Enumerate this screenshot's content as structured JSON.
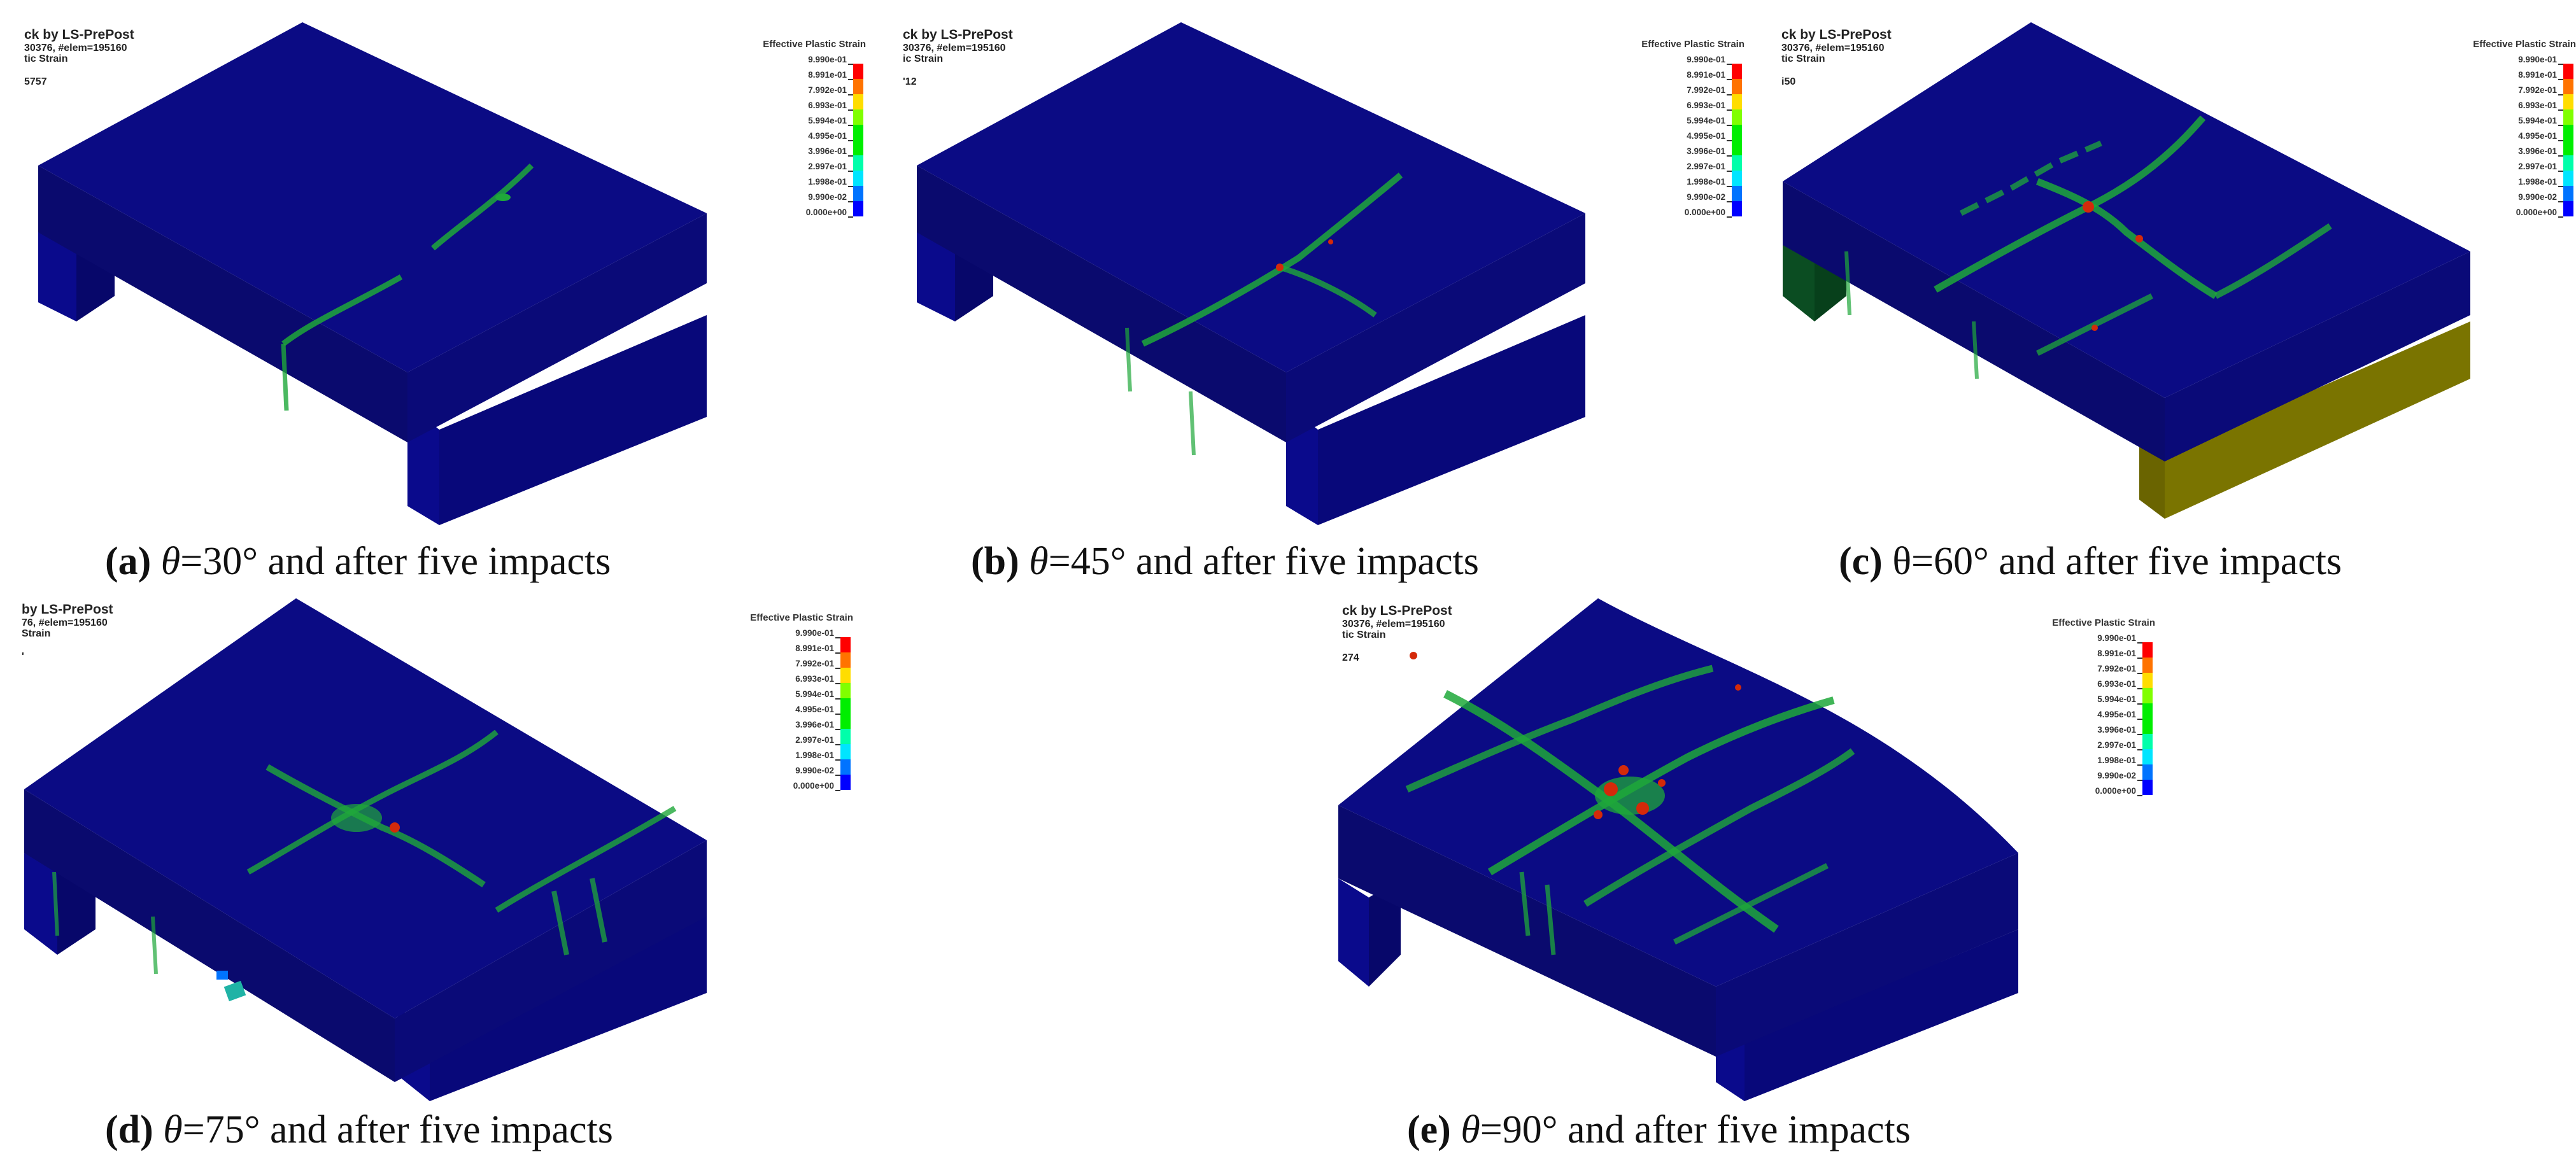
{
  "figure": {
    "panels": [
      {
        "id": "a",
        "header": [
          "ck by LS-PrePost",
          "30376, #elem=195160",
          "tic Strain",
          "5757"
        ],
        "caption": {
          "label": "(a)",
          "theta_symbol": "θ",
          "angle": "=30°",
          "text": " and after five impacts",
          "theta_italic": true
        },
        "support_colors": {
          "left": "#0a0a8c",
          "right": "#0a0a8c"
        },
        "damage_level": "low"
      },
      {
        "id": "b",
        "header": [
          "ck by LS-PrePost",
          "30376, #elem=195160",
          "ic Strain",
          "'12"
        ],
        "caption": {
          "label": "(b)",
          "theta_symbol": "θ",
          "angle": "=45°",
          "text": " and after five impacts",
          "theta_italic": true
        },
        "support_colors": {
          "left": "#0a0a8c",
          "right": "#0a0a8c"
        },
        "damage_level": "moderate"
      },
      {
        "id": "c",
        "header": [
          "ck by LS-PrePost",
          "30376, #elem=195160",
          "tic Strain",
          "i50"
        ],
        "caption": {
          "label": "(c)",
          "theta_symbol": "θ",
          "angle": "=60°",
          "text": " and after five impacts",
          "theta_italic": false
        },
        "support_colors": {
          "left": "#0b4d22",
          "right": "#7a7400"
        },
        "damage_level": "high"
      },
      {
        "id": "d",
        "header": [
          "by LS-PrePost",
          "76, #elem=195160",
          "Strain",
          "'"
        ],
        "caption": {
          "label": "(d)",
          "theta_symbol": "θ",
          "angle": "=75°",
          "text": " and after five impacts",
          "theta_italic": true
        },
        "support_colors": {
          "left": "#0a0a8c",
          "right": "#0a0a8c"
        },
        "damage_level": "high"
      },
      {
        "id": "e",
        "header": [
          "ck by LS-PrePost",
          "30376, #elem=195160",
          "tic Strain",
          "274"
        ],
        "caption": {
          "label": "(e)",
          "theta_symbol": "θ",
          "angle": "=90°",
          "text": " and after five impacts",
          "theta_italic": true
        },
        "support_colors": {
          "left": "#0a0a8c",
          "right": "#0a0a8c"
        },
        "damage_level": "severe"
      }
    ],
    "legend": {
      "title": "Effective Plastic Strain",
      "labels": [
        "9.990e-01",
        "8.991e-01",
        "7.992e-01",
        "6.993e-01",
        "5.994e-01",
        "4.995e-01",
        "3.996e-01",
        "2.997e-01",
        "1.998e-01",
        "9.990e-02",
        "0.000e+00"
      ],
      "colors_top_to_bottom": [
        "#ff0000",
        "#ff7300",
        "#ffdd00",
        "#80ff00",
        "#00ee00",
        "#00ee00",
        "#00ffaa",
        "#00e5ff",
        "#0073ff",
        "#0000ff"
      ]
    },
    "colors": {
      "slab_top": "#0b0b84",
      "slab_side_left": "#0a0a6e",
      "slab_side_right": "#0a0a78",
      "support_front": "#0a0a8c",
      "strain_green": "#1fa83a",
      "strain_cyan": "#1fb3a6",
      "strain_red": "#d42a0a"
    }
  }
}
